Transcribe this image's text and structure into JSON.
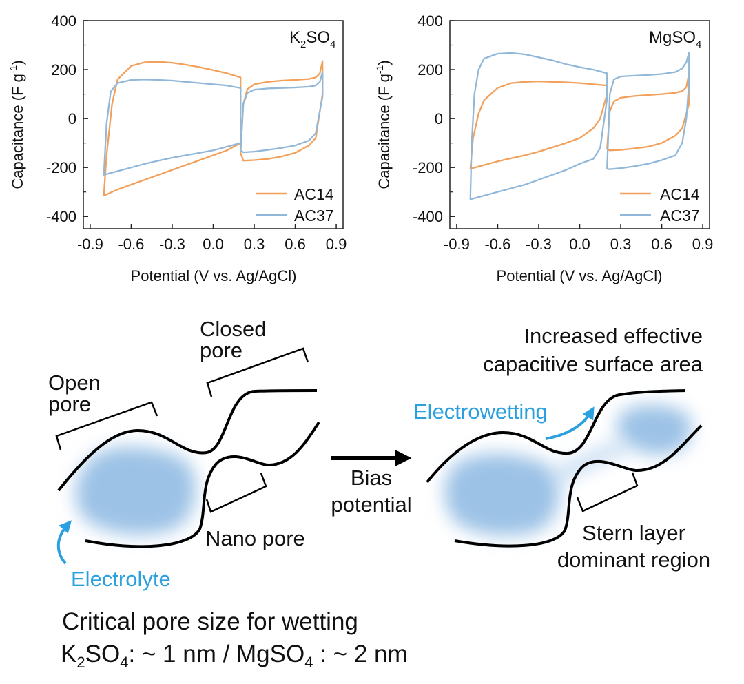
{
  "colors": {
    "ac14": "#f2a05a",
    "ac37": "#92b8d9",
    "accent": "#2aa0de",
    "ink": "#111111"
  },
  "shared_axes": {
    "xlabel": "Potential (V vs. Ag/AgCl)",
    "ylabel_main": "Capacitance (F g",
    "ylabel_sup": "-1",
    "ylabel_close": ")"
  },
  "chart_data": [
    {
      "type": "line",
      "panel_label": {
        "base": "K",
        "sub1": "2",
        "mid": "SO",
        "sub2": "4"
      },
      "xlabel": "Potential (V vs. Ag/AgCl)",
      "ylabel": "Capacitance (F g-1)",
      "xlim": [
        -0.95,
        0.95
      ],
      "ylim": [
        -450,
        400
      ],
      "xticks": [
        "-0.9",
        "-0.6",
        "-0.3",
        "0.0",
        "0.3",
        "0.6",
        "0.9"
      ],
      "yticks": [
        "400",
        "200",
        "0",
        "-200",
        "-400"
      ],
      "legend_position": "bottom-right",
      "series": [
        {
          "name": "AC14",
          "color": "#f2a05a",
          "loops": [
            {
              "x": [
                -0.8,
                -0.78,
                -0.74,
                -0.7,
                -0.6,
                -0.5,
                -0.4,
                -0.3,
                -0.2,
                -0.1,
                0.0,
                0.1,
                0.2,
                0.2,
                0.1,
                0.0,
                -0.1,
                -0.2,
                -0.3,
                -0.4,
                -0.5,
                -0.6,
                -0.7,
                -0.8,
                -0.8
              ],
              "y": [
                -310,
                -150,
                60,
                160,
                215,
                230,
                232,
                228,
                220,
                210,
                198,
                185,
                168,
                -100,
                -130,
                -150,
                -170,
                -190,
                -210,
                -230,
                -250,
                -270,
                -290,
                -315,
                -310
              ]
            },
            {
              "x": [
                0.2,
                0.22,
                0.25,
                0.3,
                0.4,
                0.5,
                0.6,
                0.7,
                0.75,
                0.78,
                0.8,
                0.8,
                0.75,
                0.7,
                0.6,
                0.5,
                0.4,
                0.3,
                0.22,
                0.2
              ],
              "y": [
                -140,
                60,
                120,
                140,
                150,
                155,
                158,
                162,
                168,
                185,
                235,
                100,
                -80,
                -110,
                -140,
                -155,
                -165,
                -170,
                -172,
                -140
              ]
            }
          ]
        },
        {
          "name": "AC37",
          "color": "#92b8d9",
          "loops": [
            {
              "x": [
                -0.8,
                -0.78,
                -0.75,
                -0.7,
                -0.6,
                -0.5,
                -0.4,
                -0.3,
                -0.2,
                -0.1,
                0.0,
                0.1,
                0.2,
                0.2,
                0.1,
                0.0,
                -0.1,
                -0.2,
                -0.3,
                -0.4,
                -0.5,
                -0.6,
                -0.7,
                -0.8,
                -0.8
              ],
              "y": [
                -225,
                -20,
                110,
                145,
                158,
                160,
                158,
                155,
                150,
                145,
                140,
                135,
                125,
                -100,
                -115,
                -130,
                -140,
                -150,
                -160,
                -172,
                -185,
                -200,
                -215,
                -230,
                -225
              ]
            },
            {
              "x": [
                0.2,
                0.22,
                0.25,
                0.3,
                0.4,
                0.5,
                0.6,
                0.7,
                0.75,
                0.78,
                0.8,
                0.8,
                0.75,
                0.7,
                0.6,
                0.5,
                0.4,
                0.3,
                0.22,
                0.2
              ],
              "y": [
                -130,
                60,
                105,
                118,
                123,
                125,
                127,
                130,
                135,
                150,
                190,
                90,
                -60,
                -90,
                -110,
                -120,
                -128,
                -135,
                -138,
                -130
              ]
            }
          ]
        }
      ]
    },
    {
      "type": "line",
      "panel_label": {
        "base": "MgSO",
        "sub1": "",
        "mid": "",
        "sub2": "4"
      },
      "xlabel": "Potential (V vs. Ag/AgCl)",
      "ylabel": "Capacitance (F g-1)",
      "xlim": [
        -0.95,
        0.95
      ],
      "ylim": [
        -450,
        400
      ],
      "xticks": [
        "-0.9",
        "-0.6",
        "-0.3",
        "0.0",
        "0.3",
        "0.6",
        "0.9"
      ],
      "yticks": [
        "400",
        "200",
        "0",
        "-200",
        "-400"
      ],
      "legend_position": "bottom-right",
      "series": [
        {
          "name": "AC14",
          "color": "#f2a05a",
          "loops": [
            {
              "x": [
                -0.8,
                -0.78,
                -0.74,
                -0.7,
                -0.6,
                -0.5,
                -0.4,
                -0.3,
                -0.2,
                -0.1,
                0.0,
                0.1,
                0.2,
                0.2,
                0.15,
                0.1,
                0.0,
                -0.1,
                -0.2,
                -0.3,
                -0.4,
                -0.5,
                -0.6,
                -0.7,
                -0.8,
                -0.8
              ],
              "y": [
                -205,
                -80,
                20,
                75,
                125,
                145,
                150,
                152,
                150,
                148,
                145,
                140,
                135,
                100,
                0,
                -40,
                -80,
                -100,
                -118,
                -135,
                -150,
                -162,
                -175,
                -190,
                -205,
                -205
              ]
            },
            {
              "x": [
                0.2,
                0.22,
                0.25,
                0.3,
                0.4,
                0.5,
                0.6,
                0.7,
                0.75,
                0.78,
                0.8,
                0.8,
                0.75,
                0.7,
                0.6,
                0.5,
                0.4,
                0.3,
                0.22,
                0.2
              ],
              "y": [
                -125,
                30,
                70,
                85,
                92,
                96,
                100,
                105,
                112,
                128,
                185,
                60,
                -40,
                -70,
                -100,
                -115,
                -122,
                -128,
                -130,
                -125
              ]
            }
          ]
        },
        {
          "name": "AC37",
          "color": "#92b8d9",
          "loops": [
            {
              "x": [
                -0.8,
                -0.79,
                -0.77,
                -0.74,
                -0.7,
                -0.6,
                -0.5,
                -0.4,
                -0.3,
                -0.2,
                -0.1,
                0.0,
                0.1,
                0.2,
                0.2,
                0.15,
                0.1,
                0.0,
                -0.1,
                -0.2,
                -0.3,
                -0.4,
                -0.5,
                -0.6,
                -0.7,
                -0.8,
                -0.8
              ],
              "y": [
                -325,
                -100,
                100,
                200,
                245,
                265,
                268,
                262,
                250,
                238,
                222,
                210,
                200,
                185,
                80,
                -120,
                -165,
                -185,
                -210,
                -230,
                -250,
                -270,
                -285,
                -300,
                -315,
                -330,
                -325
              ]
            },
            {
              "x": [
                0.2,
                0.22,
                0.25,
                0.3,
                0.4,
                0.5,
                0.6,
                0.7,
                0.75,
                0.78,
                0.8,
                0.8,
                0.78,
                0.75,
                0.7,
                0.6,
                0.5,
                0.4,
                0.3,
                0.22,
                0.2
              ],
              "y": [
                -205,
                100,
                160,
                172,
                175,
                178,
                182,
                190,
                205,
                230,
                270,
                150,
                0,
                -100,
                -150,
                -170,
                -185,
                -195,
                -203,
                -207,
                -205
              ]
            }
          ]
        }
      ]
    }
  ],
  "diagram": {
    "closed_pore": [
      "Closed",
      "pore"
    ],
    "open_pore": [
      "Open",
      "pore"
    ],
    "nano_pore": "Nano pore",
    "electrolyte": "Electrolyte",
    "bias": [
      "Bias",
      "potential"
    ],
    "increased": [
      "Increased effective",
      "capacitive surface area"
    ],
    "electrowetting": "Electrowetting",
    "stern": [
      "Stern layer",
      "dominant region"
    ],
    "critical_title": "Critical pore size for wetting",
    "critical_line": {
      "k_base": "K",
      "k_sub1": "2",
      "k_mid": "SO",
      "k_sub2": "4",
      "k_rest": ": ~ 1 nm / MgSO",
      "mg_sub": "4",
      "mg_rest": " : ~ 2 nm"
    }
  }
}
